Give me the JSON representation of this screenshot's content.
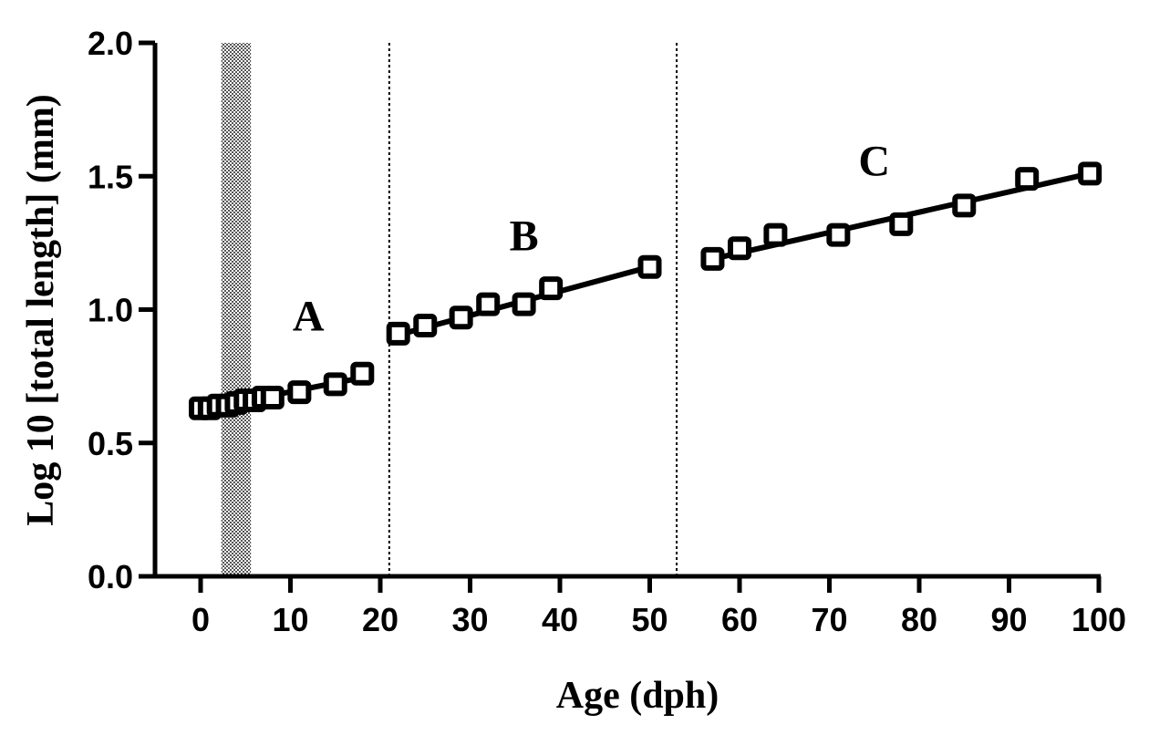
{
  "chart_data": {
    "type": "scatter",
    "xlabel": "Age (dph)",
    "ylabel": "Log 10 [total length] (mm)",
    "xlim": [
      0,
      100
    ],
    "ylim": [
      0,
      2.0
    ],
    "xticks": [
      "0",
      "10",
      "20",
      "30",
      "40",
      "50",
      "60",
      "70",
      "80",
      "90",
      "100"
    ],
    "yticks": [
      "0.0",
      "0.5",
      "1.0",
      "1.5",
      "2.0"
    ],
    "grid": false,
    "shaded_band": {
      "x_start": 2.3,
      "x_end": 5.6,
      "pattern": "checkered"
    },
    "phase_dividers": [
      21,
      53
    ],
    "phases": [
      {
        "label": "A",
        "label_position": [
          12,
          0.98
        ],
        "x": [
          0,
          1,
          2,
          3,
          4,
          5,
          6,
          7,
          8,
          11,
          15,
          18
        ],
        "y": [
          0.63,
          0.63,
          0.64,
          0.64,
          0.65,
          0.66,
          0.66,
          0.67,
          0.67,
          0.69,
          0.72,
          0.76
        ],
        "fit": {
          "x": [
            0,
            18
          ],
          "y": [
            0.625,
            0.745
          ]
        }
      },
      {
        "label": "B",
        "label_position": [
          36,
          1.28
        ],
        "x": [
          22,
          25,
          29,
          32,
          36,
          39,
          50
        ],
        "y": [
          0.91,
          0.94,
          0.97,
          1.02,
          1.02,
          1.08,
          1.16
        ],
        "fit": {
          "x": [
            22,
            50
          ],
          "y": [
            0.905,
            1.16
          ]
        }
      },
      {
        "label": "C",
        "label_position": [
          75,
          1.56
        ],
        "x": [
          57,
          60,
          64,
          71,
          78,
          85,
          92,
          99
        ],
        "y": [
          1.19,
          1.23,
          1.28,
          1.28,
          1.32,
          1.39,
          1.49,
          1.51
        ],
        "fit": {
          "x": [
            57,
            99
          ],
          "y": [
            1.19,
            1.51
          ]
        }
      }
    ]
  }
}
